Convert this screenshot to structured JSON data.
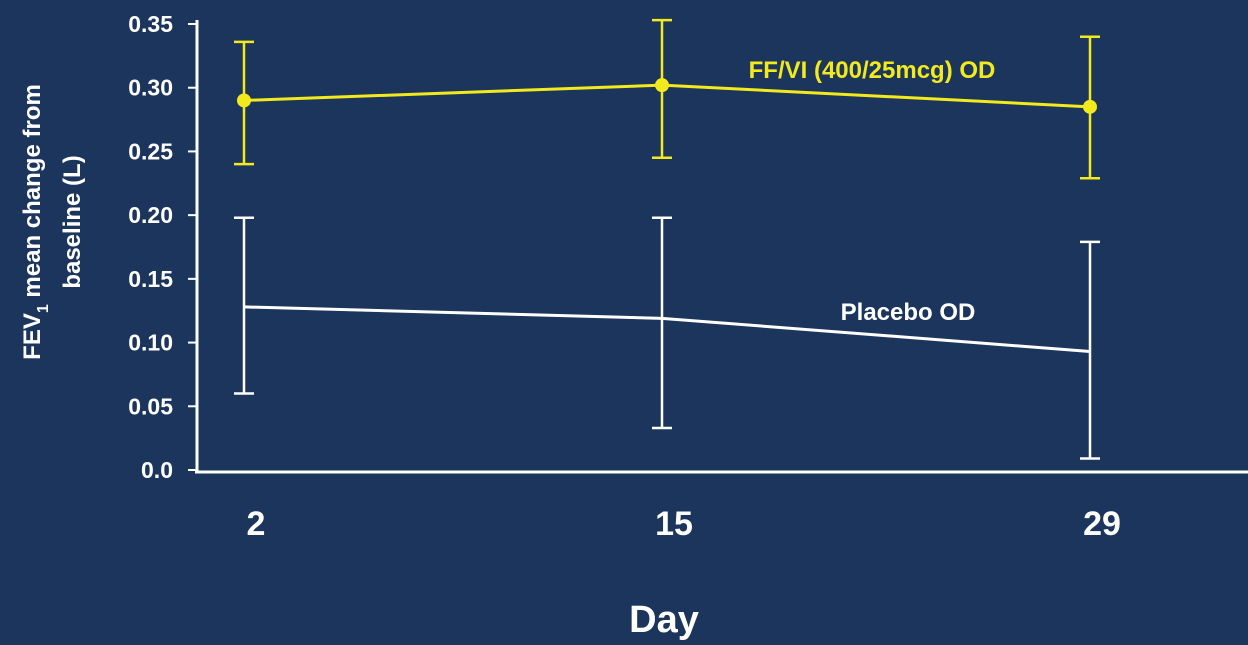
{
  "chart_data": {
    "type": "line",
    "xlabel": "Day",
    "ylabel": {
      "prefix": "FEV",
      "subscript": "1",
      "line1_rest": " mean change from",
      "line2": "baseline (L)"
    },
    "x": [
      2,
      15,
      29
    ],
    "xtick_labels": [
      "2",
      "15",
      "29"
    ],
    "ylim": [
      0,
      0.35
    ],
    "yticks": [
      0.0,
      0.05,
      0.1,
      0.15,
      0.2,
      0.25,
      0.3,
      0.35
    ],
    "ytick_labels": [
      "0.0",
      "0.05",
      "0.10",
      "0.15",
      "0.20",
      "0.25",
      "0.30",
      "0.35"
    ],
    "grid": false,
    "series": [
      {
        "name": "FF/VI (400/25mcg) OD",
        "color": "#f2ea1c",
        "markers": true,
        "values": [
          0.29,
          0.302,
          0.285
        ],
        "error_low": [
          0.24,
          0.245,
          0.229
        ],
        "error_high": [
          0.336,
          0.353,
          0.34
        ]
      },
      {
        "name": "Placebo OD",
        "color": "#ffffff",
        "markers": false,
        "values": [
          0.128,
          0.119,
          0.093
        ],
        "error_low": [
          0.06,
          0.033,
          0.009
        ],
        "error_high": [
          0.198,
          0.198,
          0.179
        ]
      }
    ]
  }
}
